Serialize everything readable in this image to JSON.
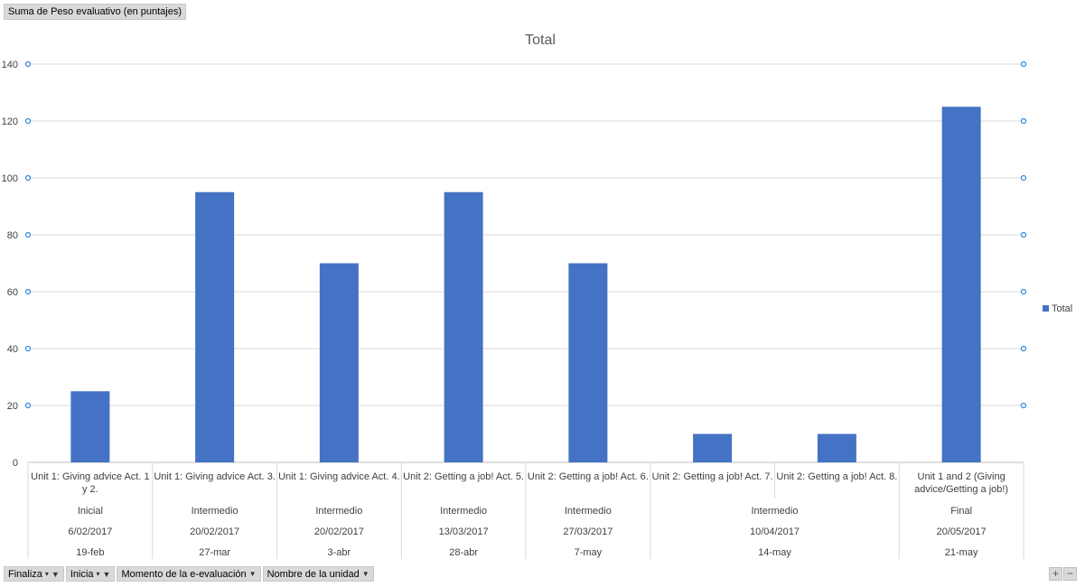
{
  "pivot": {
    "value_field": "Suma de Peso evaluativo (en puntajes)",
    "filter_fields": [
      {
        "label": "Finaliza",
        "filter_applied": true
      },
      {
        "label": "Inicia",
        "filter_applied": true
      },
      {
        "label": "Momento de la e-evaluación",
        "filter_applied": false
      },
      {
        "label": "Nombre de la unidad",
        "filter_applied": false
      }
    ],
    "zoom_in": "+",
    "zoom_out": "−"
  },
  "chart_data": {
    "type": "bar",
    "title": "Total",
    "legend": {
      "position": "right",
      "entries": [
        "Total"
      ]
    },
    "bar_color": "#4472C4",
    "ylim": [
      0,
      140
    ],
    "yticks": [
      0,
      20,
      40,
      60,
      80,
      100,
      120,
      140
    ],
    "grid": true,
    "series": [
      {
        "name": "Total",
        "values": [
          25,
          95,
          70,
          95,
          70,
          10,
          10,
          125
        ]
      }
    ],
    "categories": [
      [
        "Unit 1: Giving advice Act. 1",
        "y 2."
      ],
      [
        "Unit 1: Giving advice Act. 3."
      ],
      [
        "Unit 1: Giving advice Act. 4."
      ],
      [
        "Unit 2: Getting a job! Act. 5."
      ],
      [
        "Unit 2: Getting a job! Act. 6."
      ],
      [
        "Unit 2: Getting a job! Act. 7."
      ],
      [
        "Unit 2: Getting a job! Act. 8."
      ],
      [
        "Unit 1 and 2 (Giving",
        "advice/Getting a job!)"
      ]
    ],
    "group_levels": [
      [
        {
          "label": "Inicial",
          "span": 1
        },
        {
          "label": "Intermedio",
          "span": 1
        },
        {
          "label": "Intermedio",
          "span": 1
        },
        {
          "label": "Intermedio",
          "span": 1
        },
        {
          "label": "Intermedio",
          "span": 1
        },
        {
          "label": "Intermedio",
          "span": 2
        },
        {
          "label": "Final",
          "span": 1
        }
      ],
      [
        {
          "label": "6/02/2017",
          "span": 1
        },
        {
          "label": "20/02/2017",
          "span": 1
        },
        {
          "label": "20/02/2017",
          "span": 1
        },
        {
          "label": "13/03/2017",
          "span": 1
        },
        {
          "label": "27/03/2017",
          "span": 1
        },
        {
          "label": "10/04/2017",
          "span": 2
        },
        {
          "label": "20/05/2017",
          "span": 1
        }
      ],
      [
        {
          "label": "19-feb",
          "span": 1
        },
        {
          "label": "27-mar",
          "span": 1
        },
        {
          "label": "3-abr",
          "span": 1
        },
        {
          "label": "28-abr",
          "span": 1
        },
        {
          "label": "7-may",
          "span": 1
        },
        {
          "label": "14-may",
          "span": 2
        },
        {
          "label": "21-may",
          "span": 1
        }
      ]
    ]
  }
}
